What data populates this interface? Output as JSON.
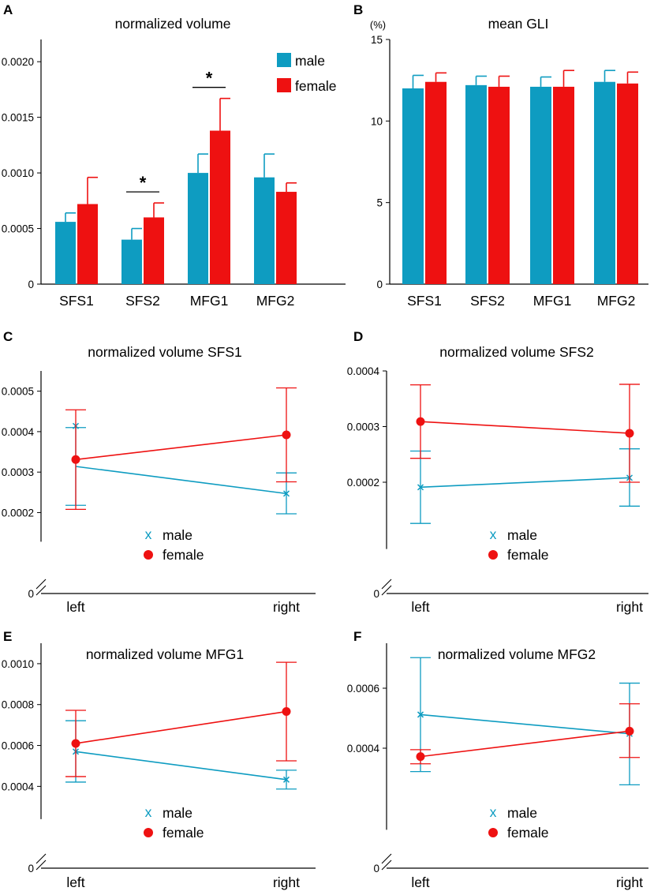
{
  "colors": {
    "male": "#0e9cc1",
    "female": "#ee1111",
    "axis": "#000000"
  },
  "chart_data": [
    {
      "panel": "A",
      "type": "bar",
      "title": "normalized volume",
      "categories": [
        "SFS1",
        "SFS2",
        "MFG1",
        "MFG2"
      ],
      "ylim": [
        0,
        0.0022
      ],
      "yticks": [
        0,
        0.0005,
        0.001,
        0.0015,
        0.002
      ],
      "ytick_labels": [
        "0",
        "0.0005",
        "0.0010",
        "0.0015",
        "0.0020"
      ],
      "unit_label": "",
      "legend": [
        "male",
        "female"
      ],
      "series": [
        {
          "name": "male",
          "values": [
            0.00056,
            0.0004,
            0.001,
            0.00096
          ],
          "errors": [
            8e-05,
            0.0001,
            0.00017,
            0.00021
          ]
        },
        {
          "name": "female",
          "values": [
            0.00072,
            0.0006,
            0.00138,
            0.00083
          ],
          "errors": [
            0.00024,
            0.00013,
            0.00029,
            8e-05
          ]
        }
      ],
      "significance": [
        {
          "category_index": 1,
          "label": "*"
        },
        {
          "category_index": 2,
          "label": "*"
        }
      ]
    },
    {
      "panel": "B",
      "type": "bar",
      "title": "mean GLI",
      "categories": [
        "SFS1",
        "SFS2",
        "MFG1",
        "MFG2"
      ],
      "ylim": [
        0,
        15
      ],
      "yticks": [
        0,
        5,
        10,
        15
      ],
      "ytick_labels": [
        "0",
        "5",
        "10",
        "15"
      ],
      "unit_label": "(%)",
      "legend": [],
      "series": [
        {
          "name": "male",
          "values": [
            12.0,
            12.2,
            12.1,
            12.4
          ],
          "errors": [
            0.8,
            0.55,
            0.6,
            0.7
          ]
        },
        {
          "name": "female",
          "values": [
            12.4,
            12.1,
            12.1,
            12.3
          ],
          "errors": [
            0.55,
            0.65,
            1.0,
            0.7
          ]
        }
      ],
      "significance": []
    },
    {
      "panel": "C",
      "type": "line",
      "title": "normalized volume SFS1",
      "x": [
        "left",
        "right"
      ],
      "ylim": [
        0,
        0.00055
      ],
      "ybreak_top": 0.000128,
      "yticks": [
        0.0002,
        0.0003,
        0.0004,
        0.0005
      ],
      "ytick_labels": [
        "0.0002",
        "0.0003",
        "0.0004",
        "0.0005"
      ],
      "zero_label": "0",
      "legend": [
        "male",
        "female"
      ],
      "series": [
        {
          "name": "male",
          "marker": "x",
          "values": [
            0.000314,
            0.000247
          ],
          "err_low": [
            0.000218,
            0.000197
          ],
          "err_high": [
            0.00041,
            0.000298
          ],
          "cap_low": [
            0.000218,
            0.000197
          ],
          "cap_high": [
            0.00041,
            0.000298
          ],
          "marker_y": [
            0.000414,
            0.000247
          ]
        },
        {
          "name": "female",
          "marker": "o",
          "values": [
            0.000331,
            0.000392
          ],
          "err_low": [
            0.000208,
            0.000276
          ],
          "err_high": [
            0.000454,
            0.000508
          ]
        }
      ]
    },
    {
      "panel": "D",
      "type": "line",
      "title": "normalized volume SFS2",
      "x": [
        "left",
        "right"
      ],
      "ylim": [
        0,
        0.0004
      ],
      "ybreak_top": 8e-05,
      "yticks": [
        0.0002,
        0.0003,
        0.0004
      ],
      "ytick_labels": [
        "0.0002",
        "0.0003",
        "0.0004"
      ],
      "zero_label": "0",
      "legend": [
        "male",
        "female"
      ],
      "series": [
        {
          "name": "male",
          "marker": "x",
          "values": [
            0.000191,
            0.000208
          ],
          "err_low": [
            0.000126,
            0.000157
          ],
          "err_high": [
            0.000256,
            0.00026
          ]
        },
        {
          "name": "female",
          "marker": "o",
          "values": [
            0.000309,
            0.000288
          ],
          "err_low": [
            0.000243,
            0.0002
          ],
          "err_high": [
            0.000375,
            0.000376
          ]
        }
      ]
    },
    {
      "panel": "E",
      "type": "line",
      "title": "normalized volume MFG1",
      "x": [
        "left",
        "right"
      ],
      "ylim": [
        0,
        0.0011
      ],
      "ybreak_top": 0.00024,
      "yticks": [
        0.0004,
        0.0006,
        0.0008,
        0.001
      ],
      "ytick_labels": [
        "0.0004",
        "0.0006",
        "0.0008",
        "0.0010"
      ],
      "zero_label": "0",
      "legend": [
        "male",
        "female"
      ],
      "series": [
        {
          "name": "male",
          "marker": "x",
          "values": [
            0.00057,
            0.000433
          ],
          "err_low": [
            0.000421,
            0.000387
          ],
          "err_high": [
            0.000721,
            0.000479
          ]
        },
        {
          "name": "female",
          "marker": "o",
          "values": [
            0.00061,
            0.000766
          ],
          "err_low": [
            0.000448,
            0.000525
          ],
          "err_high": [
            0.000772,
            0.001007
          ]
        }
      ]
    },
    {
      "panel": "F",
      "type": "line",
      "title": "normalized volume MFG2",
      "x": [
        "left",
        "right"
      ],
      "ylim": [
        0,
        0.00075
      ],
      "ybreak_top": 0.000128,
      "yticks": [
        0.0004,
        0.0006
      ],
      "ytick_labels": [
        "0.0004",
        "0.0006"
      ],
      "zero_label": "0",
      "legend": [
        "male",
        "female"
      ],
      "series": [
        {
          "name": "male",
          "marker": "x",
          "values": [
            0.000512,
            0.000448
          ],
          "err_low": [
            0.000322,
            0.000278
          ],
          "err_high": [
            0.000702,
            0.000617
          ]
        },
        {
          "name": "female",
          "marker": "o",
          "values": [
            0.000372,
            0.000457
          ],
          "err_low": [
            0.000348,
            0.000369
          ],
          "err_high": [
            0.000395,
            0.000548
          ]
        }
      ]
    }
  ]
}
